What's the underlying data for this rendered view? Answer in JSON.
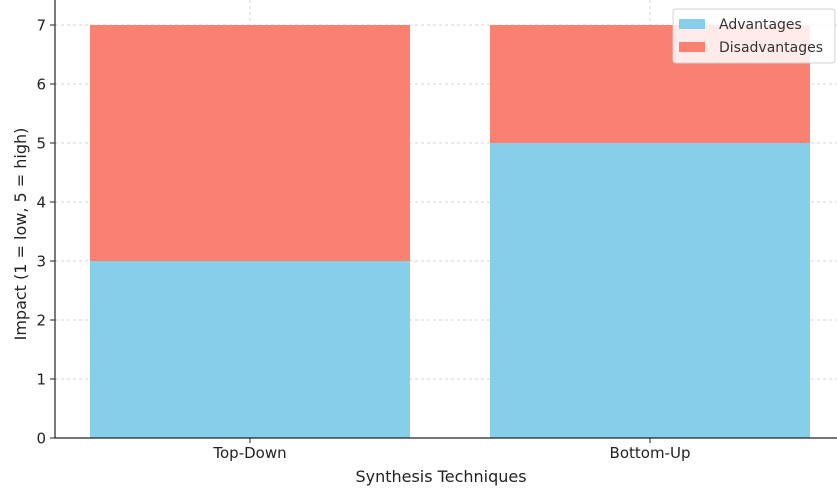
{
  "chart_data": {
    "type": "bar",
    "stacked": true,
    "categories": [
      "Top-Down",
      "Bottom-Up"
    ],
    "series": [
      {
        "name": "Advantages",
        "values": [
          3,
          5
        ],
        "color": "#87ceeb"
      },
      {
        "name": "Disadvantages",
        "values": [
          4,
          2
        ],
        "color": "#fa8072"
      }
    ],
    "xlabel": "Synthesis Techniques",
    "ylabel": "Impact (1 = low, 5 = high)",
    "ylim": [
      0,
      7
    ],
    "yticks": [
      0,
      1,
      2,
      3,
      4,
      5,
      6,
      7
    ],
    "grid": true,
    "legend_position": "top-right"
  }
}
